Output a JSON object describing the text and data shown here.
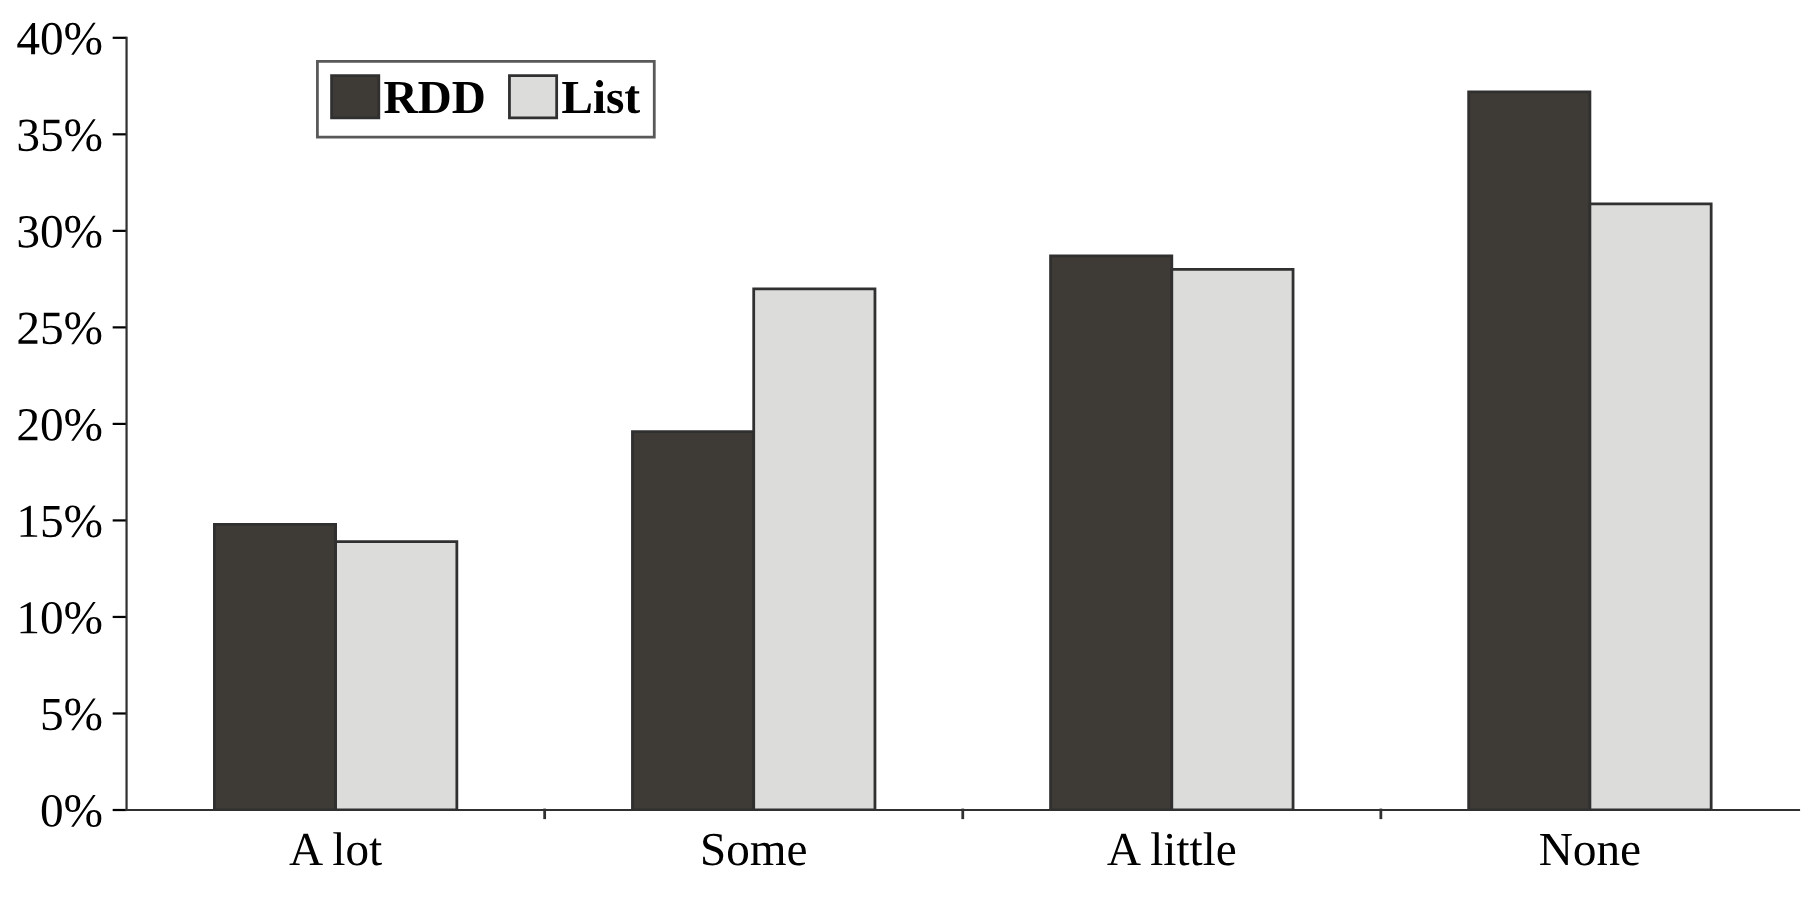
{
  "chart_data": {
    "type": "bar",
    "categories": [
      "A lot",
      "Some",
      "A little",
      "None"
    ],
    "series": [
      {
        "name": "RDD",
        "color": "#3e3a35",
        "values": [
          14.8,
          19.6,
          28.7,
          37.2
        ]
      },
      {
        "name": "List",
        "color": "#dcdcda",
        "values": [
          13.9,
          27.0,
          28.0,
          31.4
        ]
      }
    ],
    "ylim": [
      0,
      40
    ],
    "yticks": [
      {
        "value": 0,
        "label": "0%"
      },
      {
        "value": 5,
        "label": "5%"
      },
      {
        "value": 10,
        "label": "10%"
      },
      {
        "value": 15,
        "label": "15%"
      },
      {
        "value": 20,
        "label": "20%"
      },
      {
        "value": 25,
        "label": "25%"
      },
      {
        "value": 30,
        "label": "30%"
      },
      {
        "value": 35,
        "label": "35%"
      },
      {
        "value": 40,
        "label": "40%"
      }
    ],
    "grid": false,
    "legend": "top left"
  }
}
